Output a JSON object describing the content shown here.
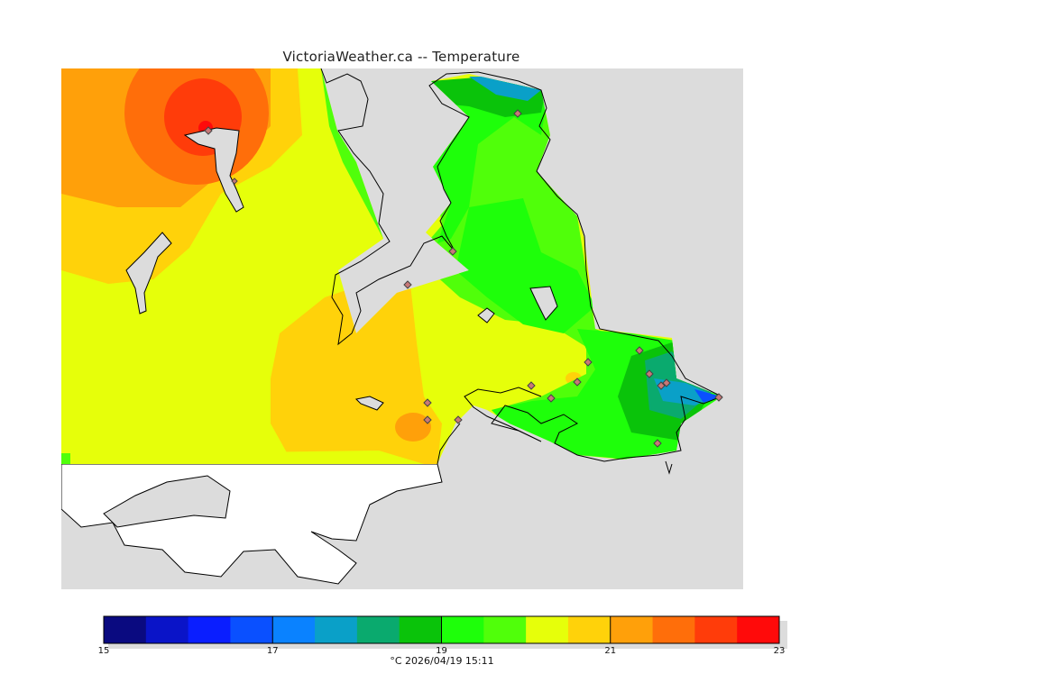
{
  "title": "VictoriaWeather.ca -- Temperature",
  "footer_text": "°C  2026/04/19 15:11",
  "legend": {
    "min": 15,
    "max": 23,
    "tick_labels": [
      "15",
      "17",
      "19",
      "21",
      "23"
    ],
    "tick_values": [
      15,
      17,
      19,
      21,
      23
    ],
    "colors": [
      "#0a0a80",
      "#0a14c8",
      "#0a1eff",
      "#0a50ff",
      "#0a82ff",
      "#0aa0c8",
      "#0aaa6e",
      "#0ac30a",
      "#1eff0a",
      "#50ff0a",
      "#e6ff0a",
      "#ffd20a",
      "#ffa00a",
      "#ff6e0a",
      "#ff3c0a",
      "#ff0a0a"
    ]
  },
  "map": {
    "background_color": "#dcdcdc",
    "stations_label": "weather-station-markers"
  }
}
